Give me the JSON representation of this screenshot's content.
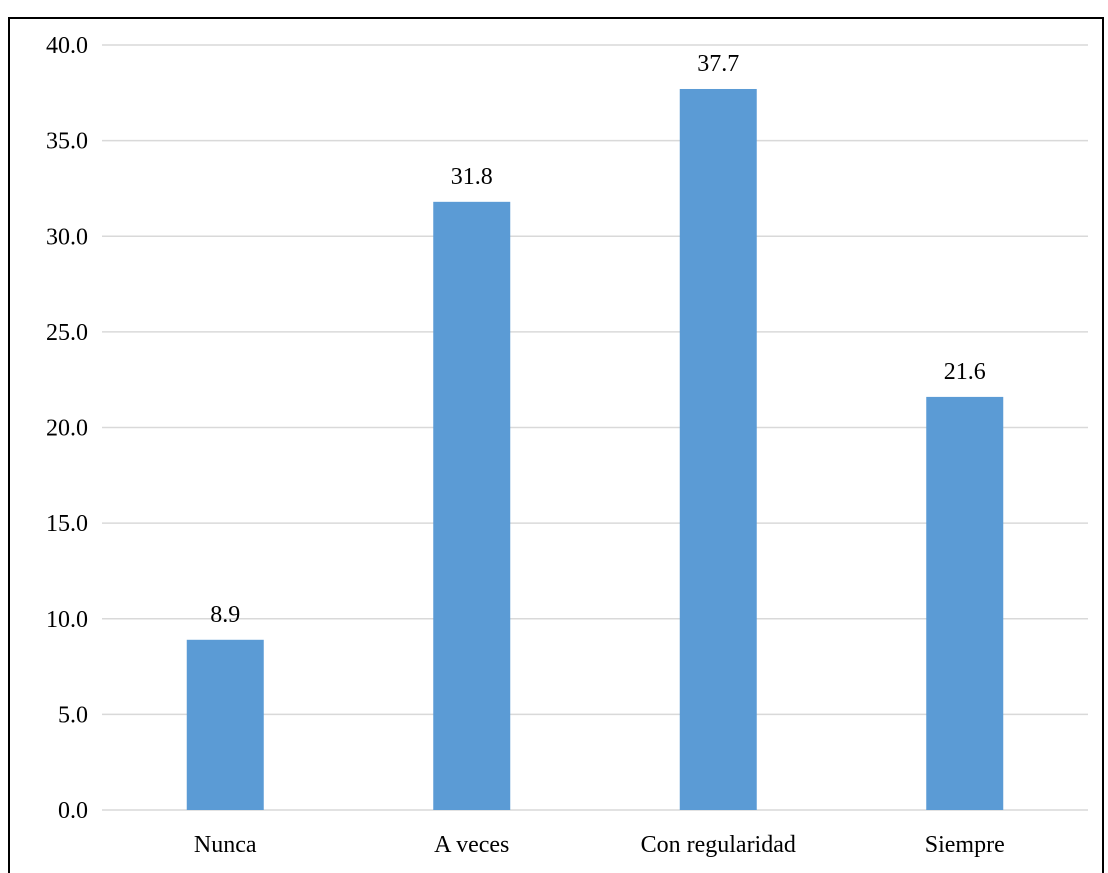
{
  "chart_data": {
    "type": "bar",
    "title": "",
    "xlabel": "",
    "ylabel": "",
    "categories": [
      "Nunca",
      "A veces",
      "Con regularidad",
      "Siempre"
    ],
    "values": [
      8.9,
      31.8,
      37.7,
      21.6
    ],
    "data_labels": [
      "8.9",
      "31.8",
      "37.7",
      "21.6"
    ],
    "ylim": [
      0,
      40
    ],
    "yticks": [
      "0.0",
      "5.0",
      "10.0",
      "15.0",
      "20.0",
      "25.0",
      "30.0",
      "35.0",
      "40.0"
    ],
    "grid": true,
    "legend": "none",
    "colors": {
      "bar": "#5B9BD5",
      "grid": "#D9D9D9",
      "axis": "#D9D9D9",
      "frame": "#000000"
    }
  }
}
